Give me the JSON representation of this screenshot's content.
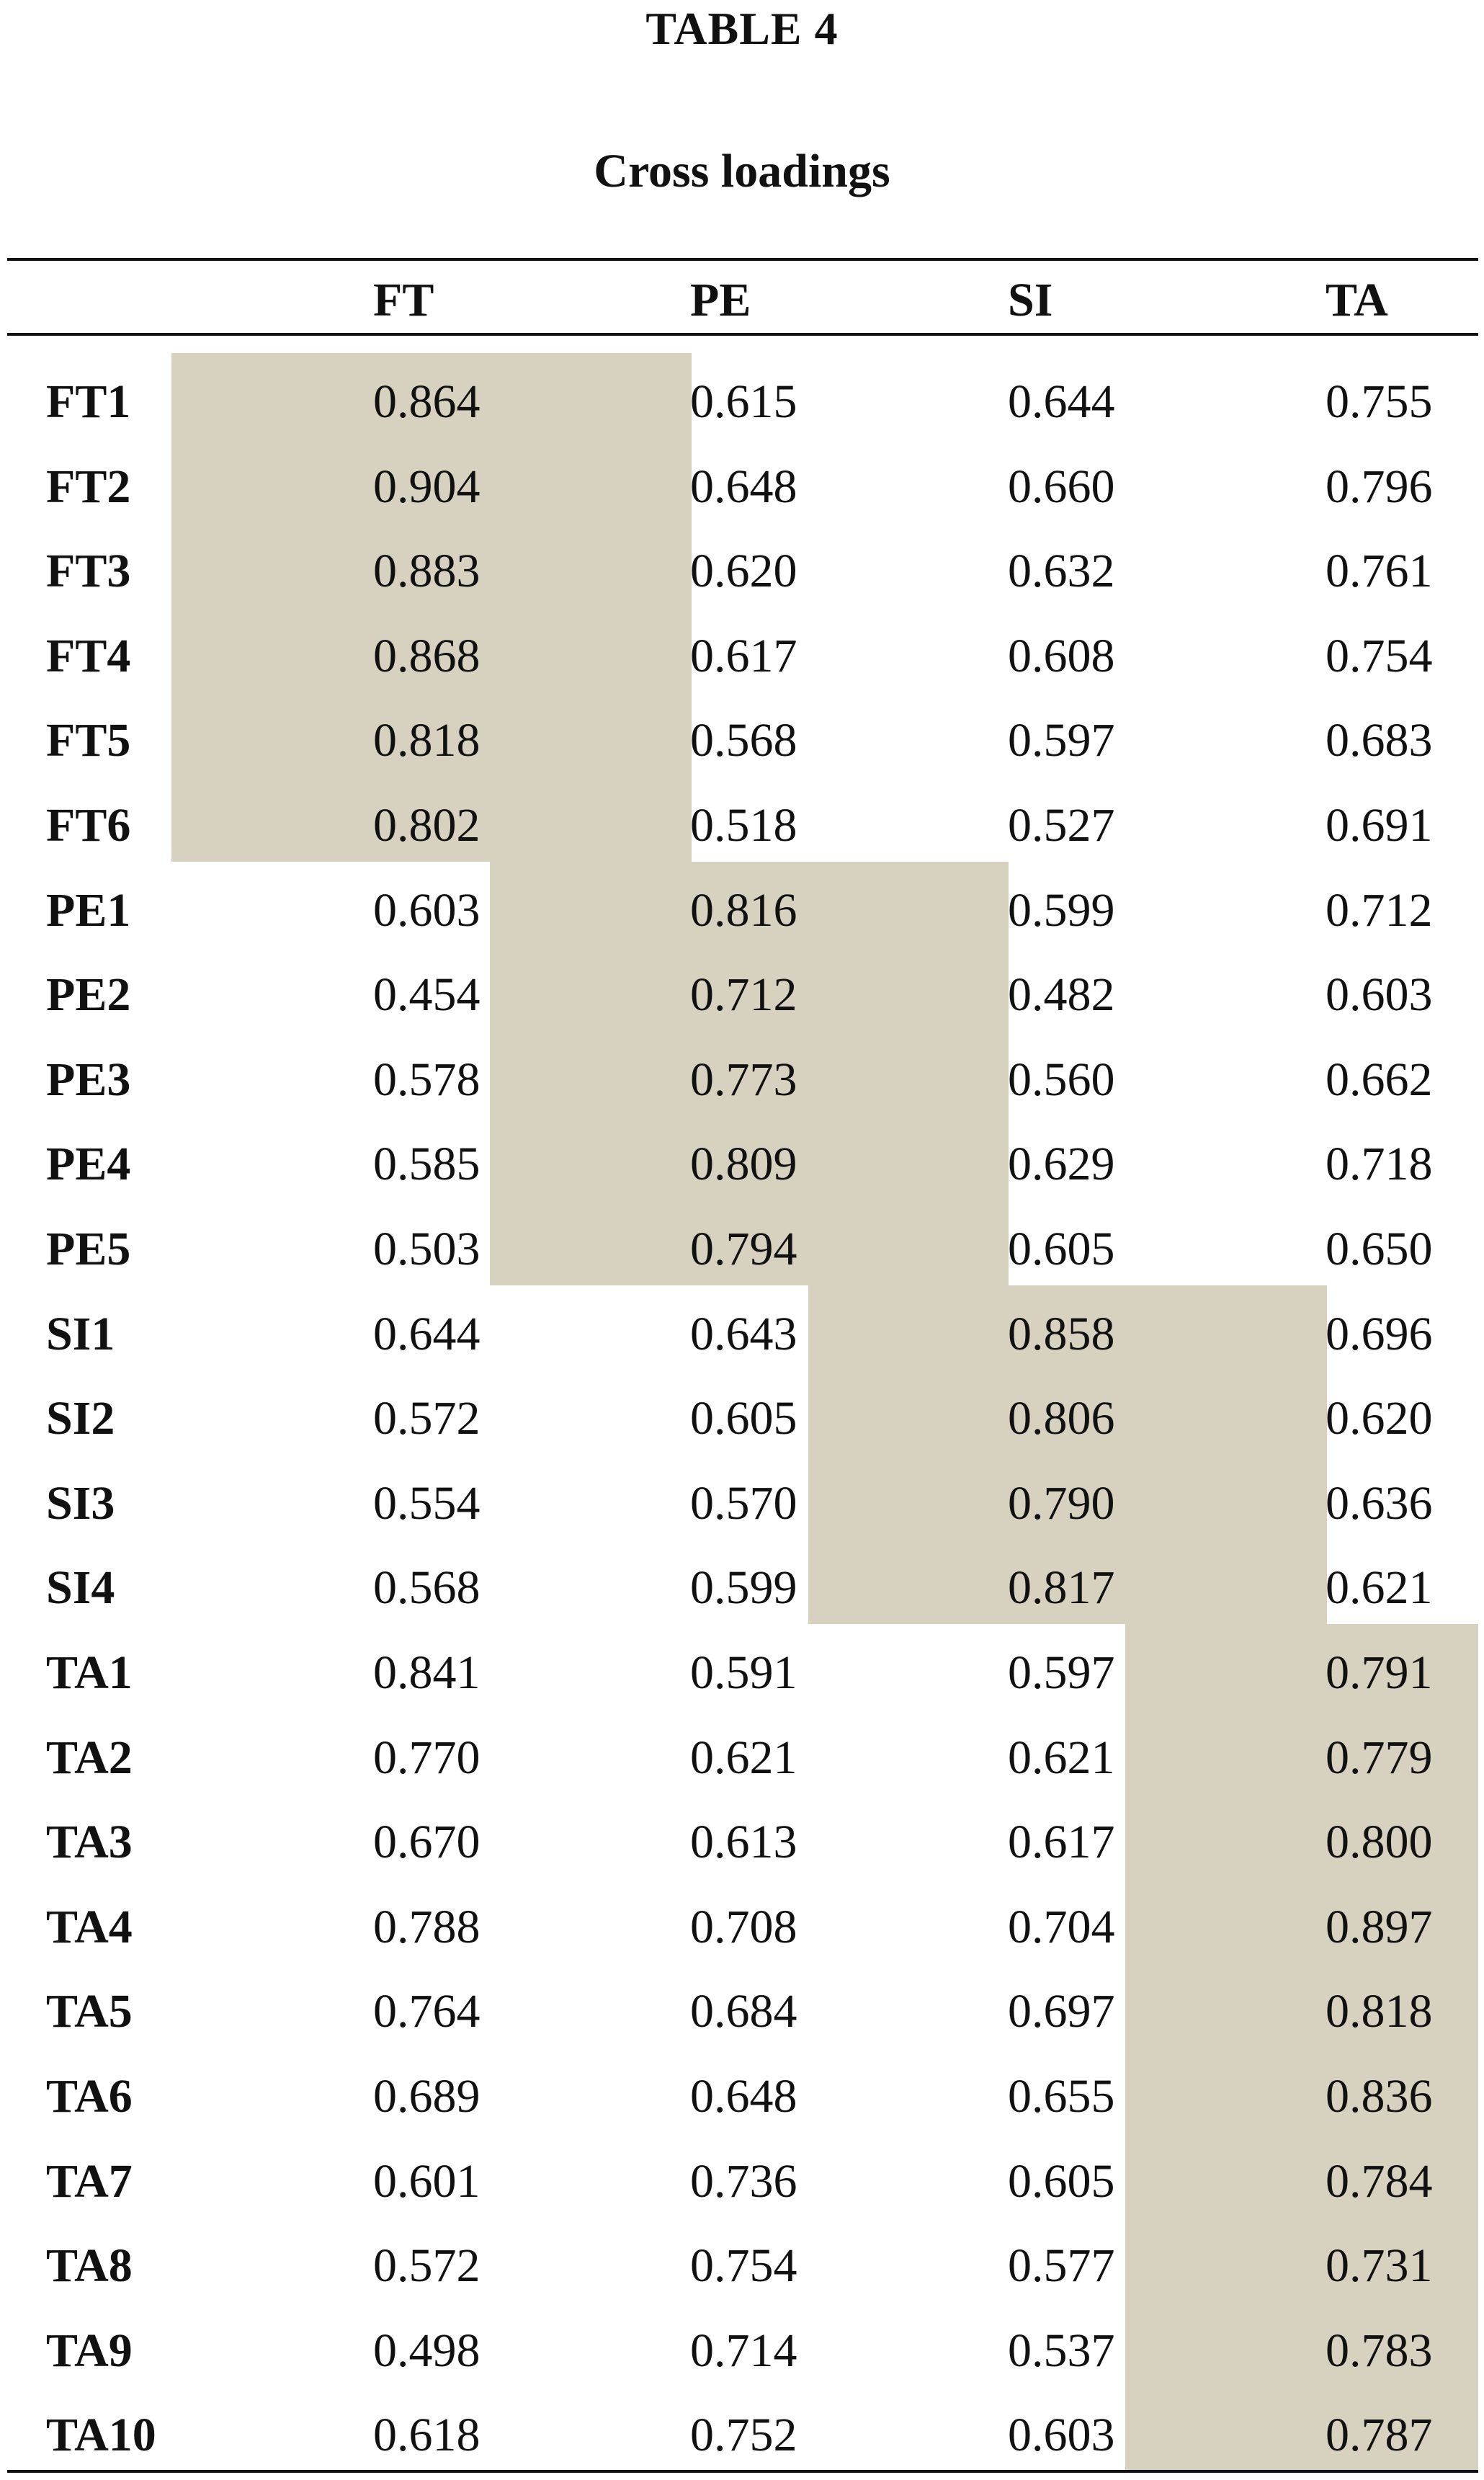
{
  "table_label": "TABLE 4",
  "title": "Cross loadings",
  "columns": [
    "",
    "FT",
    "PE",
    "SI",
    "TA"
  ],
  "rows": [
    {
      "label": "FT1",
      "values": [
        "0.864",
        "0.615",
        "0.644",
        "0.755"
      ]
    },
    {
      "label": "FT2",
      "values": [
        "0.904",
        "0.648",
        "0.660",
        "0.796"
      ]
    },
    {
      "label": "FT3",
      "values": [
        "0.883",
        "0.620",
        "0.632",
        "0.761"
      ]
    },
    {
      "label": "FT4",
      "values": [
        "0.868",
        "0.617",
        "0.608",
        "0.754"
      ]
    },
    {
      "label": "FT5",
      "values": [
        "0.818",
        "0.568",
        "0.597",
        "0.683"
      ]
    },
    {
      "label": "FT6",
      "values": [
        "0.802",
        "0.518",
        "0.527",
        "0.691"
      ]
    },
    {
      "label": "PE1",
      "values": [
        "0.603",
        "0.816",
        "0.599",
        "0.712"
      ]
    },
    {
      "label": "PE2",
      "values": [
        "0.454",
        "0.712",
        "0.482",
        "0.603"
      ]
    },
    {
      "label": "PE3",
      "values": [
        "0.578",
        "0.773",
        "0.560",
        "0.662"
      ]
    },
    {
      "label": "PE4",
      "values": [
        "0.585",
        "0.809",
        "0.629",
        "0.718"
      ]
    },
    {
      "label": "PE5",
      "values": [
        "0.503",
        "0.794",
        "0.605",
        "0.650"
      ]
    },
    {
      "label": "SI1",
      "values": [
        "0.644",
        "0.643",
        "0.858",
        "0.696"
      ]
    },
    {
      "label": "SI2",
      "values": [
        "0.572",
        "0.605",
        "0.806",
        "0.620"
      ]
    },
    {
      "label": "SI3",
      "values": [
        "0.554",
        "0.570",
        "0.790",
        "0.636"
      ]
    },
    {
      "label": "SI4",
      "values": [
        "0.568",
        "0.599",
        "0.817",
        "0.621"
      ]
    },
    {
      "label": "TA1",
      "values": [
        "0.841",
        "0.591",
        "0.597",
        "0.791"
      ]
    },
    {
      "label": "TA2",
      "values": [
        "0.770",
        "0.621",
        "0.621",
        "0.779"
      ]
    },
    {
      "label": "TA3",
      "values": [
        "0.670",
        "0.613",
        "0.617",
        "0.800"
      ]
    },
    {
      "label": "TA4",
      "values": [
        "0.788",
        "0.708",
        "0.704",
        "0.897"
      ]
    },
    {
      "label": "TA5",
      "values": [
        "0.764",
        "0.684",
        "0.697",
        "0.818"
      ]
    },
    {
      "label": "TA6",
      "values": [
        "0.689",
        "0.648",
        "0.655",
        "0.836"
      ]
    },
    {
      "label": "TA7",
      "values": [
        "0.601",
        "0.736",
        "0.605",
        "0.784"
      ]
    },
    {
      "label": "TA8",
      "values": [
        "0.572",
        "0.754",
        "0.577",
        "0.731"
      ]
    },
    {
      "label": "TA9",
      "values": [
        "0.498",
        "0.714",
        "0.537",
        "0.783"
      ]
    },
    {
      "label": "TA10",
      "values": [
        "0.618",
        "0.752",
        "0.603",
        "0.787"
      ]
    }
  ],
  "highlight_color": "#d7d2bf"
}
